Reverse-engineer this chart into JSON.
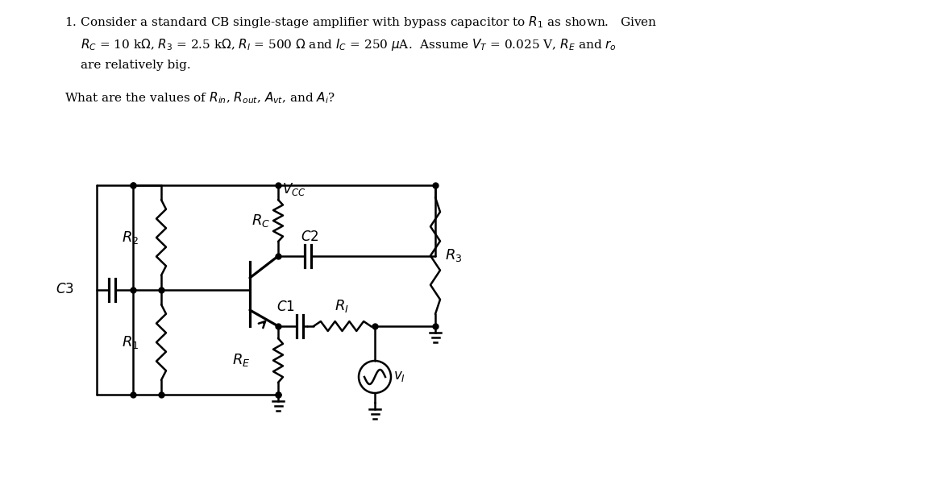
{
  "bg_color": "#ffffff",
  "text_color": "#000000",
  "line_color": "#000000",
  "fig_width": 11.5,
  "fig_height": 5.96,
  "line1": "1. Consider a standard CB single-stage amplifier with bypass capacitor to $R_1$ as shown.   Given",
  "line2": "$R_C$ = 10 k$\\Omega$, $R_3$ = 2.5 k$\\Omega$, $R_I$ = 500 $\\Omega$ and $I_C$ = 250 $\\mu$A.  Assume $V_T$ = 0.025 V, $R_E$ and $r_o$",
  "line3": "are relatively big.",
  "question": "What are the values of $R_{in}$, $R_{out}$, $A_{vt}$, and $A_i$?"
}
